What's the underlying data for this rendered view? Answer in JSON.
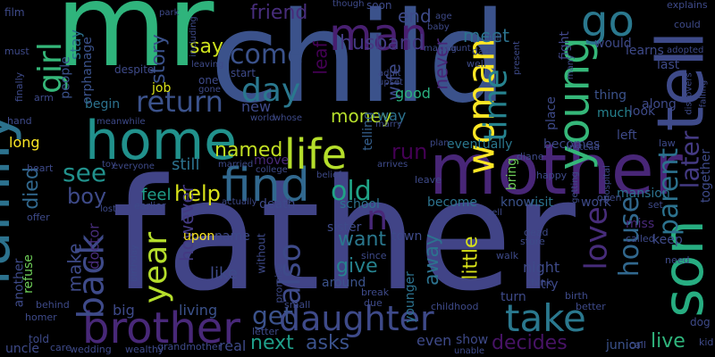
{
  "words": [
    {
      "text": "father",
      "color": "#414487"
    },
    {
      "text": "child",
      "color": "#3b528b"
    },
    {
      "text": "mr",
      "color": "#2fb47c"
    },
    {
      "text": "mother",
      "color": "#482677"
    },
    {
      "text": "family",
      "color": "#2c728e"
    },
    {
      "text": "tell",
      "color": "#3e4a89"
    },
    {
      "text": "son",
      "color": "#27ad81"
    },
    {
      "text": "home",
      "color": "#21918c"
    },
    {
      "text": "daughter",
      "color": "#3e4a89"
    },
    {
      "text": "woman",
      "color": "#fde725"
    },
    {
      "text": "young",
      "color": "#35b779"
    },
    {
      "text": "find",
      "color": "#31688e"
    },
    {
      "text": "life",
      "color": "#b5de2b"
    },
    {
      "text": "brother",
      "color": "#482878"
    },
    {
      "text": "take",
      "color": "#2a788e"
    },
    {
      "text": "girl",
      "color": "#35b779"
    },
    {
      "text": "man",
      "color": "#481f70"
    },
    {
      "text": "go",
      "color": "#2a788e"
    },
    {
      "text": "day",
      "color": "#2a788e"
    },
    {
      "text": "come",
      "color": "#3b528b"
    },
    {
      "text": "time",
      "color": "#26828e"
    },
    {
      "text": "return",
      "color": "#3b528b"
    },
    {
      "text": "back",
      "color": "#3e4a89"
    },
    {
      "text": "year",
      "color": "#b5de2b"
    },
    {
      "text": "old",
      "color": "#20a386"
    },
    {
      "text": "house",
      "color": "#31688e"
    },
    {
      "text": "love",
      "color": "#472c7a"
    },
    {
      "text": "parent",
      "color": "#2c728e"
    },
    {
      "text": "later",
      "color": "#443a83"
    },
    {
      "text": "also",
      "color": "#3e4a89"
    },
    {
      "text": "get",
      "color": "#3b528b"
    },
    {
      "text": "see",
      "color": "#21918c"
    },
    {
      "text": "n",
      "color": "#482878"
    },
    {
      "text": "help",
      "color": "#d8e219"
    },
    {
      "text": "named",
      "color": "#c2df23"
    },
    {
      "text": "husband",
      "color": "#443a83"
    },
    {
      "text": "friend",
      "color": "#472d7b"
    },
    {
      "text": "meet",
      "color": "#2c728e"
    },
    {
      "text": "end",
      "color": "#3e4a89"
    },
    {
      "text": "leaf",
      "color": "#440154"
    },
    {
      "text": "say",
      "color": "#cde11d"
    },
    {
      "text": "story",
      "color": "#3b528b"
    },
    {
      "text": "boy",
      "color": "#3e4a89"
    },
    {
      "text": "died",
      "color": "#31688e"
    },
    {
      "text": "next",
      "color": "#1f9e89"
    },
    {
      "text": "asks",
      "color": "#3b528b"
    },
    {
      "text": "decides",
      "color": "#471365"
    },
    {
      "text": "live",
      "color": "#2fb47c"
    },
    {
      "text": "want",
      "color": "#2a788e"
    },
    {
      "text": "give",
      "color": "#26828e"
    },
    {
      "text": "away",
      "color": "#2c728e"
    },
    {
      "text": "little",
      "color": "#d8e219"
    },
    {
      "text": "run",
      "color": "#440154"
    },
    {
      "text": "money",
      "color": "#b5de2b"
    },
    {
      "text": "wife",
      "color": "#3e4a89"
    },
    {
      "text": "never",
      "color": "#482677"
    },
    {
      "text": "good",
      "color": "#29af7f"
    },
    {
      "text": "telling",
      "color": "#355f8d"
    },
    {
      "text": "way",
      "color": "#2c728e"
    },
    {
      "text": "however",
      "color": "#443a83"
    },
    {
      "text": "make",
      "color": "#3e4a89"
    },
    {
      "text": "doctor",
      "color": "#472c7a"
    },
    {
      "text": "people",
      "color": "#3b528b"
    },
    {
      "text": "stay",
      "color": "#2c728e"
    },
    {
      "text": "orphanage",
      "color": "#3b528b"
    },
    {
      "text": "still",
      "color": "#2c728e"
    },
    {
      "text": "move",
      "color": "#482878"
    },
    {
      "text": "new",
      "color": "#3e4a89"
    },
    {
      "text": "becomes",
      "color": "#3e4a89"
    },
    {
      "text": "eventually",
      "color": "#2a788e"
    },
    {
      "text": "thing",
      "color": "#3b528b"
    },
    {
      "text": "much",
      "color": "#26828e"
    },
    {
      "text": "place",
      "color": "#3e4a89"
    },
    {
      "text": "fight",
      "color": "#404688"
    },
    {
      "text": "together",
      "color": "#3e4a89"
    },
    {
      "text": "mansion",
      "color": "#2c728e"
    },
    {
      "text": "miss",
      "color": "#482878"
    },
    {
      "text": "keep",
      "color": "#3e4a89"
    },
    {
      "text": "night",
      "color": "#3e4a89"
    },
    {
      "text": "try",
      "color": "#3e4a89"
    },
    {
      "text": "younger",
      "color": "#2c728e"
    },
    {
      "text": "around",
      "color": "#3b528b"
    },
    {
      "text": "visit",
      "color": "#2c728e"
    },
    {
      "text": "know",
      "color": "#3b528b"
    },
    {
      "text": "work",
      "color": "#3e4a89"
    },
    {
      "text": "bring",
      "color": "#6ece58"
    },
    {
      "text": "become",
      "color": "#2c728e"
    },
    {
      "text": "town",
      "color": "#3e4a89"
    },
    {
      "text": "sister",
      "color": "#3e4a89"
    },
    {
      "text": "school",
      "color": "#2c728e"
    },
    {
      "text": "death",
      "color": "#3e4a89"
    },
    {
      "text": "even",
      "color": "#3e4a89"
    },
    {
      "text": "show",
      "color": "#3e4a89"
    },
    {
      "text": "junior",
      "color": "#3b528b"
    },
    {
      "text": "turn",
      "color": "#3e4a89"
    },
    {
      "text": "feel",
      "color": "#1f9e89"
    },
    {
      "text": "upon",
      "color": "#fde725"
    },
    {
      "text": "name",
      "color": "#3e4a89"
    },
    {
      "text": "like",
      "color": "#3e4a89"
    },
    {
      "text": "living",
      "color": "#3b528b"
    },
    {
      "text": "big",
      "color": "#3e4a89"
    },
    {
      "text": "real",
      "color": "#3e4a89"
    },
    {
      "text": "long",
      "color": "#fde725"
    },
    {
      "text": "begin",
      "color": "#2c728e"
    },
    {
      "text": "job",
      "color": "#d8e219"
    },
    {
      "text": "refuse",
      "color": "#6ece58"
    },
    {
      "text": "another",
      "color": "#3e4a89"
    },
    {
      "text": "uncle",
      "color": "#3e4a89"
    },
    {
      "text": "told",
      "color": "#3e4a89"
    },
    {
      "text": "learns",
      "color": "#3e4a89"
    },
    {
      "text": "would",
      "color": "#3e4a89"
    },
    {
      "text": "look",
      "color": "#3e4a89"
    },
    {
      "text": "last",
      "color": "#3e4a89"
    },
    {
      "text": "left",
      "color": "#3e4a89"
    },
    {
      "text": "along",
      "color": "#3e4a89"
    },
    {
      "text": "soon",
      "color": "#3e4a89"
    },
    {
      "text": "start",
      "color": "#3e4a89"
    },
    {
      "text": "despite",
      "color": "#3e4a89"
    },
    {
      "text": "film",
      "color": "#3e4a89"
    },
    {
      "text": "must",
      "color": "#3e4a89"
    },
    {
      "text": "finally",
      "color": "#3e4a89"
    },
    {
      "text": "hand",
      "color": "#3e4a89"
    },
    {
      "text": "arm",
      "color": "#3e4a89"
    },
    {
      "text": "heart",
      "color": "#3e4a89"
    },
    {
      "text": "offer",
      "color": "#3e4a89"
    },
    {
      "text": "behind",
      "color": "#3e4a89"
    },
    {
      "text": "homer",
      "color": "#3e4a89"
    },
    {
      "text": "care",
      "color": "#3e4a89"
    },
    {
      "text": "wedding",
      "color": "#3e4a89"
    },
    {
      "text": "wealthy",
      "color": "#3e4a89"
    },
    {
      "text": "grandmother",
      "color": "#3e4a89"
    },
    {
      "text": "letter",
      "color": "#3e4a89"
    },
    {
      "text": "small",
      "color": "#3e4a89"
    },
    {
      "text": "without",
      "color": "#3e4a89"
    },
    {
      "text": "promise",
      "color": "#3e4a89"
    },
    {
      "text": "since",
      "color": "#3e4a89"
    },
    {
      "text": "break",
      "color": "#3e4a89"
    },
    {
      "text": "due",
      "color": "#3e4a89"
    },
    {
      "text": "childhood",
      "color": "#3e4a89"
    },
    {
      "text": "better",
      "color": "#3e4a89"
    },
    {
      "text": "birth",
      "color": "#3e4a89"
    },
    {
      "text": "think",
      "color": "#3e4a89"
    },
    {
      "text": "walk",
      "color": "#3e4a89"
    },
    {
      "text": "store",
      "color": "#3e4a89"
    },
    {
      "text": "dead",
      "color": "#3e4a89"
    },
    {
      "text": "call",
      "color": "#3e4a89"
    },
    {
      "text": "unable",
      "color": "#3e4a89"
    },
    {
      "text": "dog",
      "color": "#3e4a89"
    },
    {
      "text": "kid",
      "color": "#3e4a89"
    },
    {
      "text": "need",
      "color": "#3e4a89"
    },
    {
      "text": "called",
      "color": "#3e4a89"
    },
    {
      "text": "open",
      "color": "#3e4a89"
    },
    {
      "text": "set",
      "color": "#3e4a89"
    },
    {
      "text": "law",
      "color": "#3e4a89"
    },
    {
      "text": "hospital",
      "color": "#3e4a89"
    },
    {
      "text": "getting",
      "color": "#3e4a89"
    },
    {
      "text": "happy",
      "color": "#3e4a89"
    },
    {
      "text": "instead",
      "color": "#3e4a89"
    },
    {
      "text": "diane",
      "color": "#3e4a89"
    },
    {
      "text": "plan",
      "color": "#3e4a89"
    },
    {
      "text": "marry",
      "color": "#3e4a89"
    },
    {
      "text": "whose",
      "color": "#3e4a89"
    },
    {
      "text": "world",
      "color": "#3e4a89"
    },
    {
      "text": "college",
      "color": "#3e4a89"
    },
    {
      "text": "married",
      "color": "#3e4a89"
    },
    {
      "text": "actually",
      "color": "#3e4a89"
    },
    {
      "text": "belief",
      "color": "#3e4a89"
    },
    {
      "text": "arrives",
      "color": "#3e4a89"
    },
    {
      "text": "leave",
      "color": "#3e4a89"
    },
    {
      "text": "sell",
      "color": "#3e4a89"
    },
    {
      "text": "earlier",
      "color": "#3e4a89"
    },
    {
      "text": "toy",
      "color": "#3e4a89"
    },
    {
      "text": "everyone",
      "color": "#3e4a89"
    },
    {
      "text": "lost",
      "color": "#3e4a89"
    },
    {
      "text": "birthday",
      "color": "#3e4a89"
    },
    {
      "text": "meanwhile",
      "color": "#3e4a89"
    },
    {
      "text": "gone",
      "color": "#3e4a89"
    },
    {
      "text": "one",
      "color": "#3e4a89"
    },
    {
      "text": "leaving",
      "color": "#3e4a89"
    },
    {
      "text": "including",
      "color": "#3e4a89"
    },
    {
      "text": "park",
      "color": "#3e4a89"
    },
    {
      "text": "adult",
      "color": "#3e4a89"
    },
    {
      "text": "upset",
      "color": "#3e4a89"
    },
    {
      "text": "making",
      "color": "#3e4a89"
    },
    {
      "text": "baby",
      "color": "#3e4a89"
    },
    {
      "text": "age",
      "color": "#3e4a89"
    },
    {
      "text": "many",
      "color": "#3e4a89"
    },
    {
      "text": "though",
      "color": "#3e4a89"
    },
    {
      "text": "fall",
      "color": "#3e4a89"
    },
    {
      "text": "explains",
      "color": "#3e4a89"
    },
    {
      "text": "could",
      "color": "#3e4a89"
    },
    {
      "text": "adopted",
      "color": "#3e4a89"
    },
    {
      "text": "falling",
      "color": "#3e4a89"
    },
    {
      "text": "discovers",
      "color": "#3e4a89"
    },
    {
      "text": "present",
      "color": "#3e4a89"
    },
    {
      "text": "dad",
      "color": "#3e4a89"
    },
    {
      "text": "well",
      "color": "#3e4a89"
    },
    {
      "text": "aunt",
      "color": "#3e4a89"
    }
  ]
}
